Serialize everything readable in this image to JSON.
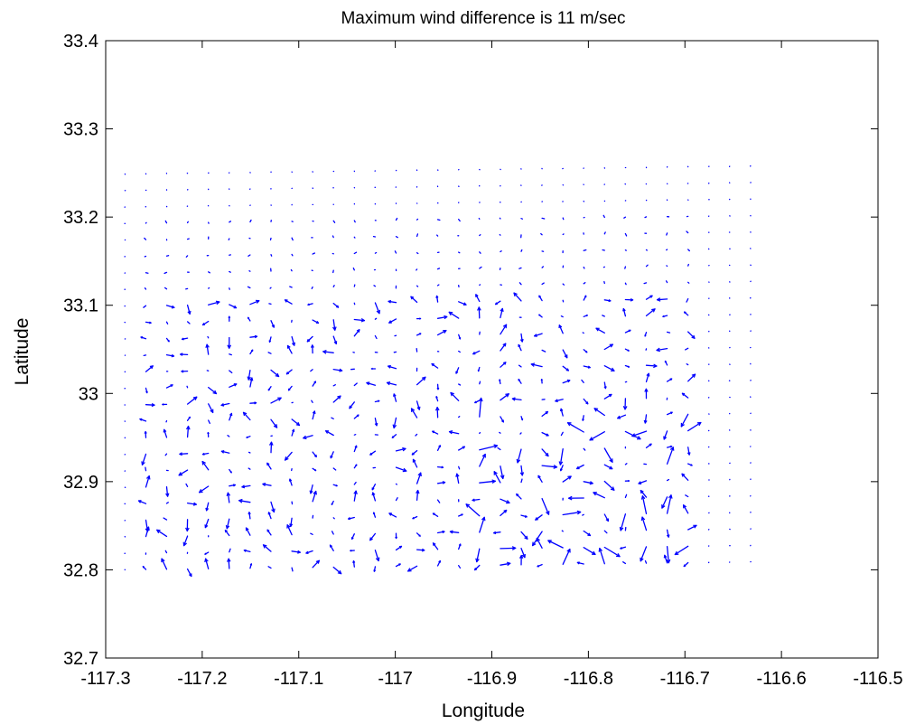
{
  "chart_data": {
    "type": "quiver",
    "title": "Maximum wind difference is 11 m/sec",
    "xlabel": "Longitude",
    "ylabel": "Latitude",
    "xlim": [
      -117.3,
      -116.5
    ],
    "ylim": [
      32.7,
      33.4
    ],
    "xticks": [
      -117.3,
      -117.2,
      -117.1,
      -117,
      -116.9,
      -116.8,
      -116.7,
      -116.6,
      -116.5
    ],
    "yticks": [
      32.7,
      32.8,
      32.9,
      33,
      33.1,
      33.2,
      33.3,
      33.4
    ],
    "xtick_labels": [
      "-117.3",
      "-117.2",
      "-117.1",
      "-117",
      "-116.9",
      "-116.8",
      "-116.7",
      "-116.6",
      "-116.5"
    ],
    "ytick_labels": [
      "32.7",
      "32.8",
      "32.9",
      "33",
      "33.1",
      "33.2",
      "33.3",
      "33.4"
    ],
    "grid": false,
    "legend": "none",
    "color": "#0000ff",
    "grid_spec": {
      "lon_start": -117.28,
      "lon_step": 0.0216,
      "n_lon": 31,
      "lat_start": 32.8,
      "lat_step": 0.0187,
      "n_lat": 25
    },
    "vectors": {
      "units": "degrees per row entry: [u, v] in degrees lon/lat",
      "rows": [
        [
          [
            0,
            0
          ],
          [
            0,
            0
          ],
          [
            0,
            0
          ],
          [
            0,
            0
          ],
          [
            0,
            0
          ],
          [
            0,
            0
          ],
          [
            0,
            0
          ],
          [
            0,
            0
          ],
          [
            0,
            0
          ],
          [
            0,
            0
          ],
          [
            0,
            0
          ],
          [
            0,
            0
          ],
          [
            0,
            0
          ],
          [
            0,
            0
          ],
          [
            0.002,
            0.004
          ],
          [
            0,
            -0.003
          ],
          [
            0.002,
            0.006
          ],
          [
            0,
            0
          ],
          [
            0,
            0
          ],
          [
            0,
            0
          ],
          [
            0.002,
            0.006
          ],
          [
            0,
            -0.004
          ],
          [
            0,
            0
          ],
          [
            0.003,
            0.004
          ],
          [
            0,
            0
          ],
          [
            0,
            -0.004
          ],
          [
            0,
            0
          ],
          [
            0,
            0
          ],
          [
            0,
            0
          ],
          [
            0,
            0
          ],
          [
            0,
            0
          ]
        ],
        [
          [
            0,
            0
          ],
          [
            0,
            0
          ],
          [
            0,
            0
          ],
          [
            0,
            0
          ],
          [
            0,
            0
          ],
          [
            0,
            0
          ],
          [
            0,
            0
          ],
          [
            0,
            0
          ],
          [
            0.002,
            0.004
          ],
          [
            0.003,
            -0.004
          ],
          [
            0,
            0
          ],
          [
            0,
            0
          ],
          [
            0,
            0
          ],
          [
            0.004,
            0.002
          ],
          [
            0.006,
            0.004
          ],
          [
            0.008,
            0.008
          ],
          [
            -0.004,
            0.006
          ],
          [
            0.006,
            -0.003
          ],
          [
            0.003,
            0.006
          ],
          [
            -0.004,
            0.01
          ],
          [
            0.008,
            0.004
          ],
          [
            0.002,
            0.008
          ],
          [
            0.004,
            -0.006
          ],
          [
            0.012,
            0.005
          ],
          [
            0.014,
            0.003
          ],
          [
            0.006,
            0.008
          ],
          [
            0.01,
            0.01
          ],
          [
            0.012,
            -0.004
          ],
          [
            0.004,
            0.003
          ],
          [
            0,
            0
          ],
          [
            0,
            0
          ]
        ],
        [
          [
            0,
            0
          ],
          [
            0,
            0
          ],
          [
            0,
            0
          ],
          [
            0,
            0
          ],
          [
            0,
            0
          ],
          [
            0,
            0
          ],
          [
            0,
            0
          ],
          [
            0,
            0
          ],
          [
            0,
            0
          ],
          [
            0,
            0
          ],
          [
            0,
            0
          ],
          [
            0,
            0
          ],
          [
            -0.006,
            0.004
          ],
          [
            0.004,
            0.004
          ],
          [
            0.01,
            0.006
          ],
          [
            0.006,
            0.004
          ],
          [
            0.004,
            -0.006
          ],
          [
            0,
            0.01
          ],
          [
            0.018,
            0.01
          ],
          [
            0.012,
            -0.004
          ],
          [
            0.003,
            -0.008
          ],
          [
            0.004,
            0.014
          ],
          [
            -0.004,
            0.012
          ],
          [
            0.004,
            0.01
          ],
          [
            0.016,
            0.004
          ],
          [
            0.004,
            -0.008
          ],
          [
            0.016,
            0.012
          ],
          [
            0.01,
            0.006
          ],
          [
            0.012,
            -0.002
          ],
          [
            0,
            0
          ],
          [
            0,
            0
          ]
        ],
        [
          [
            0,
            0
          ],
          [
            0,
            0
          ],
          [
            0,
            0
          ],
          [
            0,
            0
          ],
          [
            0,
            0
          ],
          [
            0,
            0
          ],
          [
            0,
            0
          ],
          [
            0,
            0
          ],
          [
            0.008,
            -0.004
          ],
          [
            0.002,
            -0.006
          ],
          [
            0.006,
            0.004
          ],
          [
            0.008,
            0.004
          ],
          [
            0.01,
            -0.002
          ],
          [
            0,
            0.006
          ],
          [
            0.006,
            0.004
          ],
          [
            -0.006,
            -0.003
          ],
          [
            0.01,
            0.008
          ],
          [
            0.008,
            0.004
          ],
          [
            -0.008,
            0.012
          ],
          [
            0.006,
            -0.004
          ],
          [
            0.004,
            0.01
          ],
          [
            0.01,
            -0.003
          ],
          [
            0.006,
            -0.012
          ],
          [
            -0.006,
            0.008
          ],
          [
            -0.004,
            0.012
          ],
          [
            0.008,
            0.014
          ],
          [
            0.006,
            0.006
          ],
          [
            0.006,
            0.004
          ],
          [
            0.004,
            0.004
          ],
          [
            0,
            0
          ],
          [
            0,
            0
          ]
        ],
        [
          [
            0,
            0
          ],
          [
            0,
            0
          ],
          [
            0,
            0
          ],
          [
            0.004,
            0.004
          ],
          [
            0.004,
            0.006
          ],
          [
            0,
            0
          ],
          [
            0,
            0
          ],
          [
            0,
            0
          ],
          [
            0.006,
            0.006
          ],
          [
            0.002,
            0.008
          ],
          [
            0.006,
            0.004
          ],
          [
            0.006,
            0.004
          ],
          [
            0,
            0.006
          ],
          [
            -0.006,
            0.008
          ],
          [
            0.006,
            -0.004
          ],
          [
            0.004,
            -0.012
          ],
          [
            0.012,
            0.006
          ],
          [
            0.006,
            -0.004
          ],
          [
            0.004,
            0.006
          ],
          [
            0.02,
            0.006
          ],
          [
            -0.006,
            0.006
          ],
          [
            0.004,
            0.006
          ],
          [
            0.004,
            -0.004
          ],
          [
            -0.012,
            0.006
          ],
          [
            0.004,
            -0.004
          ],
          [
            0.008,
            0.006
          ],
          [
            0.008,
            0.004
          ],
          [
            0.012,
            0.004
          ],
          [
            0.004,
            0.006
          ],
          [
            0,
            0
          ],
          [
            0,
            0
          ]
        ],
        [
          [
            0,
            0
          ],
          [
            0,
            0
          ],
          [
            0,
            0
          ],
          [
            0,
            0
          ],
          [
            0.002,
            0.004
          ],
          [
            0,
            0
          ],
          [
            0,
            0
          ],
          [
            0,
            0
          ],
          [
            0,
            0.004
          ],
          [
            0.004,
            0.004
          ],
          [
            0.004,
            -0.002
          ],
          [
            0.004,
            0.004
          ],
          [
            -0.002,
            0.006
          ],
          [
            0.006,
            0.006
          ],
          [
            0.006,
            0.003
          ],
          [
            0.004,
            -0.004
          ],
          [
            0.008,
            0.008
          ],
          [
            0.006,
            -0.004
          ],
          [
            0.006,
            0.004
          ],
          [
            0.004,
            0.004
          ],
          [
            0.006,
            0.006
          ],
          [
            0.002,
            0.006
          ],
          [
            0.004,
            0.002
          ],
          [
            0.004,
            -0.004
          ],
          [
            0.006,
            0.002
          ],
          [
            0.004,
            0.004
          ],
          [
            0,
            0
          ],
          [
            0,
            0
          ],
          [
            0,
            0
          ],
          [
            0,
            0
          ],
          [
            0,
            0
          ]
        ],
        [
          [
            0,
            0
          ],
          [
            0,
            0
          ],
          [
            0,
            0
          ],
          [
            0,
            0
          ],
          [
            0,
            0
          ],
          [
            0,
            0
          ],
          [
            0,
            0
          ],
          [
            0.002,
            -0.004
          ],
          [
            -0.004,
            -0.004
          ],
          [
            0.004,
            0.004
          ],
          [
            0.006,
            0.004
          ],
          [
            0.008,
            0.002
          ],
          [
            0.006,
            0.004
          ],
          [
            0.004,
            0.006
          ],
          [
            0.002,
            0.004
          ],
          [
            0,
            0
          ],
          [
            0,
            0
          ],
          [
            0,
            0
          ],
          [
            0,
            0
          ],
          [
            0,
            0
          ],
          [
            0,
            0
          ],
          [
            0,
            0
          ],
          [
            0,
            0
          ],
          [
            0,
            0
          ],
          [
            0,
            0
          ],
          [
            0,
            0
          ],
          [
            0,
            0
          ],
          [
            0,
            0
          ],
          [
            0,
            0
          ],
          [
            0,
            0
          ],
          [
            0,
            0
          ]
        ],
        [
          [
            0,
            0
          ],
          [
            0,
            0
          ],
          [
            0,
            0
          ],
          [
            0,
            0
          ],
          [
            0,
            0
          ],
          [
            0,
            0
          ],
          [
            0,
            0
          ],
          [
            0,
            0
          ],
          [
            0,
            0
          ],
          [
            0,
            0
          ],
          [
            0,
            0
          ],
          [
            0,
            0
          ],
          [
            0,
            0
          ],
          [
            0,
            0
          ],
          [
            0,
            0
          ],
          [
            0,
            0
          ],
          [
            0,
            0
          ],
          [
            0,
            0
          ],
          [
            0,
            0
          ],
          [
            0,
            0
          ],
          [
            0,
            0
          ],
          [
            0,
            0
          ],
          [
            0,
            0
          ],
          [
            0,
            0
          ],
          [
            0,
            0
          ],
          [
            0,
            0
          ],
          [
            0,
            0
          ],
          [
            0,
            0
          ],
          [
            0,
            0
          ],
          [
            0,
            0
          ],
          [
            0,
            0
          ]
        ]
      ],
      "note_removed": true
    }
  }
}
